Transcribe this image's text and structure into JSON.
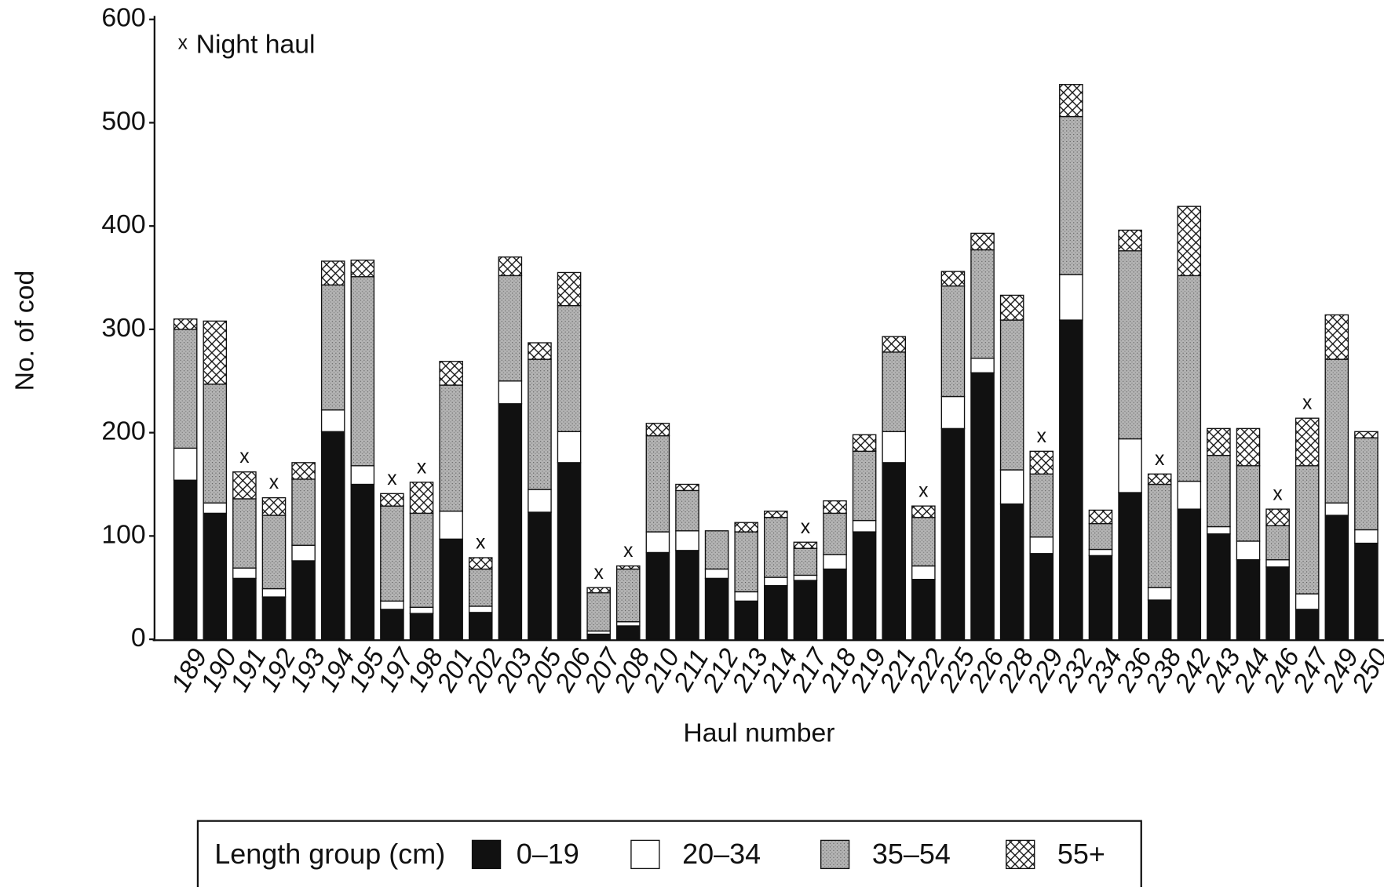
{
  "chart_data": {
    "type": "stacked_bar",
    "y_label": "No. of cod",
    "x_label": "Haul number",
    "annotation": "Night haul",
    "night_marker": "x",
    "legend_title": "Length group (cm)",
    "categories": [
      "189",
      "190",
      "191",
      "192",
      "193",
      "194",
      "195",
      "197",
      "198",
      "201",
      "202",
      "203",
      "205",
      "206",
      "207",
      "208",
      "210",
      "211",
      "212",
      "213",
      "214",
      "217",
      "218",
      "219",
      "221",
      "222",
      "225",
      "226",
      "228",
      "229",
      "232",
      "234",
      "236",
      "238",
      "242",
      "243",
      "244",
      "246",
      "247",
      "249",
      "250"
    ],
    "night_haul": [
      false,
      false,
      true,
      true,
      false,
      false,
      false,
      true,
      true,
      false,
      true,
      false,
      false,
      false,
      true,
      true,
      false,
      false,
      false,
      false,
      false,
      true,
      false,
      false,
      false,
      true,
      false,
      false,
      false,
      true,
      false,
      false,
      false,
      true,
      false,
      false,
      false,
      true,
      true,
      false,
      false
    ],
    "series": [
      {
        "name": "0–19",
        "color": "#111111",
        "pattern": "solid",
        "values": [
          154,
          122,
          59,
          41,
          76,
          201,
          150,
          29,
          25,
          97,
          26,
          228,
          123,
          171,
          5,
          13,
          84,
          86,
          59,
          37,
          52,
          57,
          68,
          104,
          171,
          58,
          204,
          258,
          131,
          83,
          309,
          81,
          142,
          38,
          126,
          102,
          77,
          70,
          29,
          120,
          93
        ]
      },
      {
        "name": "20–34",
        "color": "#ffffff",
        "pattern": "solid",
        "values": [
          31,
          10,
          10,
          8,
          15,
          21,
          18,
          8,
          6,
          27,
          6,
          22,
          22,
          30,
          3,
          4,
          20,
          19,
          9,
          9,
          8,
          5,
          14,
          11,
          30,
          13,
          31,
          14,
          33,
          16,
          44,
          6,
          52,
          12,
          27,
          7,
          18,
          7,
          15,
          12,
          13
        ]
      },
      {
        "name": "35–54",
        "color": "#a8a8a8",
        "pattern": "stipple",
        "values": [
          115,
          115,
          67,
          71,
          64,
          121,
          183,
          92,
          91,
          122,
          36,
          102,
          126,
          122,
          37,
          51,
          93,
          39,
          37,
          58,
          58,
          26,
          40,
          67,
          77,
          47,
          107,
          105,
          145,
          61,
          153,
          25,
          182,
          100,
          199,
          69,
          73,
          33,
          124,
          139,
          89
        ]
      },
      {
        "name": "55+",
        "color": "#ffffff",
        "pattern": "crosshatch",
        "values": [
          10,
          61,
          26,
          17,
          16,
          23,
          16,
          12,
          30,
          23,
          11,
          18,
          16,
          32,
          5,
          3,
          12,
          6,
          0,
          9,
          6,
          6,
          12,
          16,
          15,
          11,
          14,
          16,
          24,
          22,
          31,
          13,
          20,
          10,
          67,
          26,
          36,
          16,
          46,
          43,
          6
        ]
      }
    ],
    "ylim": [
      0,
      600
    ],
    "yticks": [
      0,
      100,
      200,
      300,
      400,
      500,
      600
    ]
  }
}
